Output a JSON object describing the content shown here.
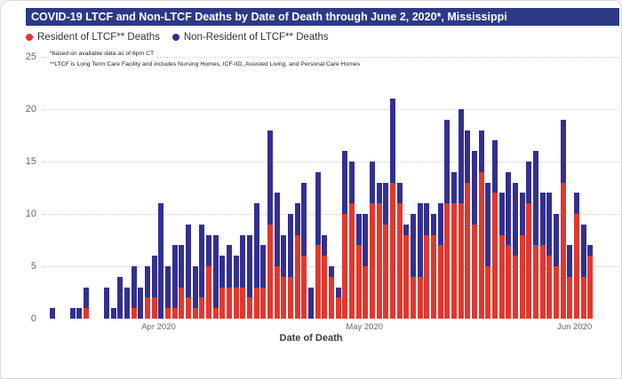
{
  "title": "COVID-19 LTCF and Non-LTCF Deaths by Date of Death through June 2, 2020*, Mississippi",
  "title_bg_color": "#2c3a86",
  "legend": [
    {
      "label": "Resident of LTCF** Deaths",
      "color": "#df392f"
    },
    {
      "label": "Non-Resident of LTCF** Deaths",
      "color": "#33308f"
    }
  ],
  "footnotes": [
    "*based on available data as of 6pm CT",
    "**LTCF is Long Term Care Facility and includes Nursing Homes, ICF-IID, Assisted Living, and Personal Care Homes"
  ],
  "chart_data": {
    "type": "bar",
    "stacked": true,
    "xlabel": "Date of Death",
    "ylabel": "",
    "ylim": [
      0,
      25
    ],
    "yticks": [
      0,
      5,
      10,
      15,
      20,
      25
    ],
    "grid": "dotted horizontal",
    "legend_position": "top-left",
    "x_ticks": [
      {
        "label": "Apr 2020",
        "day_index": 16
      },
      {
        "label": "May 2020",
        "day_index": 46
      },
      {
        "label": "Jun 2020",
        "day_index": 77
      }
    ],
    "categories": [
      "Mar 16",
      "Mar 17",
      "Mar 18",
      "Mar 19",
      "Mar 20",
      "Mar 21",
      "Mar 22",
      "Mar 23",
      "Mar 24",
      "Mar 25",
      "Mar 26",
      "Mar 27",
      "Mar 28",
      "Mar 29",
      "Mar 30",
      "Mar 31",
      "Apr 1",
      "Apr 2",
      "Apr 3",
      "Apr 4",
      "Apr 5",
      "Apr 6",
      "Apr 7",
      "Apr 8",
      "Apr 9",
      "Apr 10",
      "Apr 11",
      "Apr 12",
      "Apr 13",
      "Apr 14",
      "Apr 15",
      "Apr 16",
      "Apr 17",
      "Apr 18",
      "Apr 19",
      "Apr 20",
      "Apr 21",
      "Apr 22",
      "Apr 23",
      "Apr 24",
      "Apr 25",
      "Apr 26",
      "Apr 27",
      "Apr 28",
      "Apr 29",
      "Apr 30",
      "May 1",
      "May 2",
      "May 3",
      "May 4",
      "May 5",
      "May 6",
      "May 7",
      "May 8",
      "May 9",
      "May 10",
      "May 11",
      "May 12",
      "May 13",
      "May 14",
      "May 15",
      "May 16",
      "May 17",
      "May 18",
      "May 19",
      "May 20",
      "May 21",
      "May 22",
      "May 23",
      "May 24",
      "May 25",
      "May 26",
      "May 27",
      "May 28",
      "May 29",
      "May 30",
      "May 31",
      "Jun 1",
      "Jun 2",
      "Jun 3"
    ],
    "series": [
      {
        "name": "Resident of LTCF** Deaths",
        "color": "#df392f",
        "values": [
          0,
          0,
          0,
          0,
          0,
          1,
          0,
          0,
          0,
          0,
          0,
          0,
          1,
          0,
          2,
          2,
          0,
          1,
          1,
          3,
          2,
          1,
          2,
          5,
          1,
          3,
          3,
          3,
          3,
          2,
          3,
          3,
          9,
          5,
          4,
          4,
          8,
          6,
          0,
          7,
          6,
          4,
          2,
          10,
          11,
          7,
          5,
          11,
          11,
          9,
          13,
          11,
          8,
          4,
          4,
          8,
          8,
          7,
          11,
          11,
          11,
          13,
          9,
          14,
          5,
          12,
          8,
          7,
          6,
          8,
          11,
          7,
          7,
          6,
          5,
          13,
          4,
          10,
          4,
          6
        ]
      },
      {
        "name": "Non-Resident of LTCF** Deaths",
        "color": "#33308f",
        "values": [
          1,
          0,
          0,
          1,
          1,
          2,
          0,
          0,
          3,
          1,
          4,
          3,
          4,
          3,
          3,
          4,
          11,
          4,
          6,
          4,
          7,
          4,
          7,
          3,
          7,
          3,
          4,
          3,
          5,
          6,
          8,
          4,
          9,
          7,
          4,
          6,
          3,
          7,
          3,
          7,
          2,
          1,
          1,
          6,
          4,
          3,
          5,
          4,
          2,
          4,
          8,
          2,
          1,
          6,
          7,
          3,
          2,
          4,
          8,
          3,
          9,
          5,
          7,
          4,
          8,
          5,
          4,
          7,
          7,
          4,
          4,
          9,
          5,
          6,
          5,
          6,
          3,
          2,
          5,
          1
        ]
      }
    ]
  }
}
